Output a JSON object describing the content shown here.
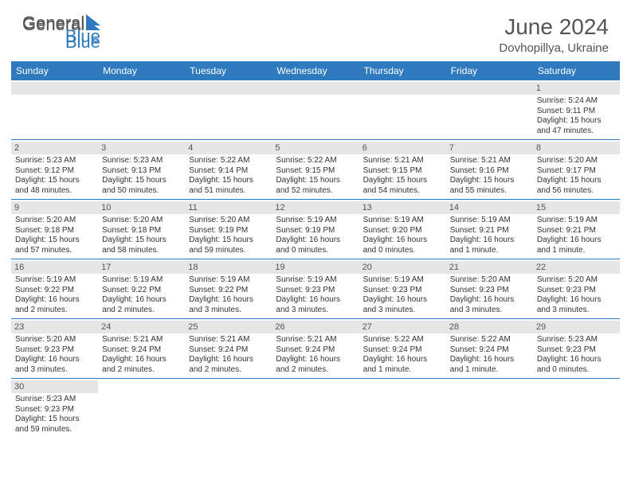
{
  "brand": {
    "part1": "General",
    "part2": "Blue"
  },
  "header": {
    "title": "June 2024",
    "location": "Dovhopillya, Ukraine"
  },
  "styling": {
    "header_bg": "#2f7abf",
    "header_text": "#ffffff",
    "daynum_bg": "#e6e6e6",
    "border_color": "#2f7abf",
    "text_color": "#333333",
    "title_color": "#555555",
    "title_fontsize": 28,
    "location_fontsize": 15,
    "dayhead_fontsize": 12,
    "cell_fontsize": 10
  },
  "dayHeaders": [
    "Sunday",
    "Monday",
    "Tuesday",
    "Wednesday",
    "Thursday",
    "Friday",
    "Saturday"
  ],
  "weeks": [
    [
      null,
      null,
      null,
      null,
      null,
      null,
      {
        "n": "1",
        "sr": "Sunrise: 5:24 AM",
        "ss": "Sunset: 9:11 PM",
        "d1": "Daylight: 15 hours",
        "d2": "and 47 minutes."
      }
    ],
    [
      {
        "n": "2",
        "sr": "Sunrise: 5:23 AM",
        "ss": "Sunset: 9:12 PM",
        "d1": "Daylight: 15 hours",
        "d2": "and 48 minutes."
      },
      {
        "n": "3",
        "sr": "Sunrise: 5:23 AM",
        "ss": "Sunset: 9:13 PM",
        "d1": "Daylight: 15 hours",
        "d2": "and 50 minutes."
      },
      {
        "n": "4",
        "sr": "Sunrise: 5:22 AM",
        "ss": "Sunset: 9:14 PM",
        "d1": "Daylight: 15 hours",
        "d2": "and 51 minutes."
      },
      {
        "n": "5",
        "sr": "Sunrise: 5:22 AM",
        "ss": "Sunset: 9:15 PM",
        "d1": "Daylight: 15 hours",
        "d2": "and 52 minutes."
      },
      {
        "n": "6",
        "sr": "Sunrise: 5:21 AM",
        "ss": "Sunset: 9:15 PM",
        "d1": "Daylight: 15 hours",
        "d2": "and 54 minutes."
      },
      {
        "n": "7",
        "sr": "Sunrise: 5:21 AM",
        "ss": "Sunset: 9:16 PM",
        "d1": "Daylight: 15 hours",
        "d2": "and 55 minutes."
      },
      {
        "n": "8",
        "sr": "Sunrise: 5:20 AM",
        "ss": "Sunset: 9:17 PM",
        "d1": "Daylight: 15 hours",
        "d2": "and 56 minutes."
      }
    ],
    [
      {
        "n": "9",
        "sr": "Sunrise: 5:20 AM",
        "ss": "Sunset: 9:18 PM",
        "d1": "Daylight: 15 hours",
        "d2": "and 57 minutes."
      },
      {
        "n": "10",
        "sr": "Sunrise: 5:20 AM",
        "ss": "Sunset: 9:18 PM",
        "d1": "Daylight: 15 hours",
        "d2": "and 58 minutes."
      },
      {
        "n": "11",
        "sr": "Sunrise: 5:20 AM",
        "ss": "Sunset: 9:19 PM",
        "d1": "Daylight: 15 hours",
        "d2": "and 59 minutes."
      },
      {
        "n": "12",
        "sr": "Sunrise: 5:19 AM",
        "ss": "Sunset: 9:19 PM",
        "d1": "Daylight: 16 hours",
        "d2": "and 0 minutes."
      },
      {
        "n": "13",
        "sr": "Sunrise: 5:19 AM",
        "ss": "Sunset: 9:20 PM",
        "d1": "Daylight: 16 hours",
        "d2": "and 0 minutes."
      },
      {
        "n": "14",
        "sr": "Sunrise: 5:19 AM",
        "ss": "Sunset: 9:21 PM",
        "d1": "Daylight: 16 hours",
        "d2": "and 1 minute."
      },
      {
        "n": "15",
        "sr": "Sunrise: 5:19 AM",
        "ss": "Sunset: 9:21 PM",
        "d1": "Daylight: 16 hours",
        "d2": "and 1 minute."
      }
    ],
    [
      {
        "n": "16",
        "sr": "Sunrise: 5:19 AM",
        "ss": "Sunset: 9:22 PM",
        "d1": "Daylight: 16 hours",
        "d2": "and 2 minutes."
      },
      {
        "n": "17",
        "sr": "Sunrise: 5:19 AM",
        "ss": "Sunset: 9:22 PM",
        "d1": "Daylight: 16 hours",
        "d2": "and 2 minutes."
      },
      {
        "n": "18",
        "sr": "Sunrise: 5:19 AM",
        "ss": "Sunset: 9:22 PM",
        "d1": "Daylight: 16 hours",
        "d2": "and 3 minutes."
      },
      {
        "n": "19",
        "sr": "Sunrise: 5:19 AM",
        "ss": "Sunset: 9:23 PM",
        "d1": "Daylight: 16 hours",
        "d2": "and 3 minutes."
      },
      {
        "n": "20",
        "sr": "Sunrise: 5:19 AM",
        "ss": "Sunset: 9:23 PM",
        "d1": "Daylight: 16 hours",
        "d2": "and 3 minutes."
      },
      {
        "n": "21",
        "sr": "Sunrise: 5:20 AM",
        "ss": "Sunset: 9:23 PM",
        "d1": "Daylight: 16 hours",
        "d2": "and 3 minutes."
      },
      {
        "n": "22",
        "sr": "Sunrise: 5:20 AM",
        "ss": "Sunset: 9:23 PM",
        "d1": "Daylight: 16 hours",
        "d2": "and 3 minutes."
      }
    ],
    [
      {
        "n": "23",
        "sr": "Sunrise: 5:20 AM",
        "ss": "Sunset: 9:23 PM",
        "d1": "Daylight: 16 hours",
        "d2": "and 3 minutes."
      },
      {
        "n": "24",
        "sr": "Sunrise: 5:21 AM",
        "ss": "Sunset: 9:24 PM",
        "d1": "Daylight: 16 hours",
        "d2": "and 2 minutes."
      },
      {
        "n": "25",
        "sr": "Sunrise: 5:21 AM",
        "ss": "Sunset: 9:24 PM",
        "d1": "Daylight: 16 hours",
        "d2": "and 2 minutes."
      },
      {
        "n": "26",
        "sr": "Sunrise: 5:21 AM",
        "ss": "Sunset: 9:24 PM",
        "d1": "Daylight: 16 hours",
        "d2": "and 2 minutes."
      },
      {
        "n": "27",
        "sr": "Sunrise: 5:22 AM",
        "ss": "Sunset: 9:24 PM",
        "d1": "Daylight: 16 hours",
        "d2": "and 1 minute."
      },
      {
        "n": "28",
        "sr": "Sunrise: 5:22 AM",
        "ss": "Sunset: 9:24 PM",
        "d1": "Daylight: 16 hours",
        "d2": "and 1 minute."
      },
      {
        "n": "29",
        "sr": "Sunrise: 5:23 AM",
        "ss": "Sunset: 9:23 PM",
        "d1": "Daylight: 16 hours",
        "d2": "and 0 minutes."
      }
    ],
    [
      {
        "n": "30",
        "sr": "Sunrise: 5:23 AM",
        "ss": "Sunset: 9:23 PM",
        "d1": "Daylight: 15 hours",
        "d2": "and 59 minutes."
      },
      null,
      null,
      null,
      null,
      null,
      null
    ]
  ]
}
